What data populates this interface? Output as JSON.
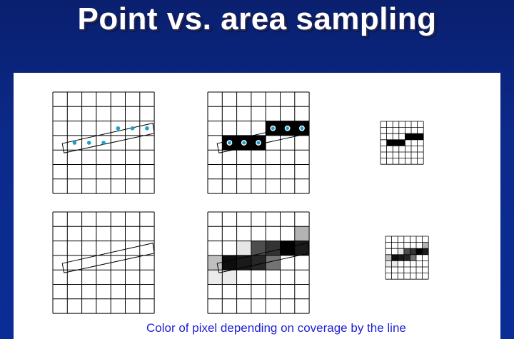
{
  "title": "Point vs. area sampling",
  "caption": "Color of pixel depending on coverage by the line",
  "colors": {
    "background": "#0b2a8a",
    "panel": "#ffffff",
    "title_text": "#ffffff",
    "caption_text": "#1f1fd6",
    "sample_dot": "#1a9fd0",
    "grid_line": "#000000"
  },
  "grids": {
    "point_sampling": {
      "rows": 7,
      "cols": 7,
      "filled_cells": [
        [
          3,
          1
        ],
        [
          3,
          2
        ],
        [
          3,
          3
        ],
        [
          2,
          4
        ],
        [
          2,
          5
        ],
        [
          2,
          6
        ]
      ],
      "sample_points": [
        [
          3,
          1
        ],
        [
          3,
          2
        ],
        [
          3,
          3
        ],
        [
          2,
          4
        ],
        [
          2,
          5
        ],
        [
          2,
          6
        ]
      ]
    },
    "point_sampling_small": {
      "rows": 7,
      "cols": 7,
      "filled_cells": [
        [
          3,
          1
        ],
        [
          3,
          2
        ],
        [
          3,
          3
        ],
        [
          2,
          4
        ],
        [
          2,
          5
        ],
        [
          2,
          6
        ]
      ]
    },
    "area_sampling": {
      "rows": 7,
      "cols": 7,
      "shaded_cells": [
        {
          "row": 1,
          "col": 6,
          "gray": 0.7
        },
        {
          "row": 2,
          "col": 2,
          "gray": 0.9
        },
        {
          "row": 2,
          "col": 3,
          "gray": 0.3
        },
        {
          "row": 2,
          "col": 4,
          "gray": 0.2
        },
        {
          "row": 2,
          "col": 5,
          "gray": 0.0
        },
        {
          "row": 2,
          "col": 6,
          "gray": 0.1
        },
        {
          "row": 3,
          "col": 0,
          "gray": 0.75
        },
        {
          "row": 3,
          "col": 1,
          "gray": 0.05
        },
        {
          "row": 3,
          "col": 2,
          "gray": 0.1
        },
        {
          "row": 3,
          "col": 3,
          "gray": 0.15
        },
        {
          "row": 3,
          "col": 4,
          "gray": 0.45
        },
        {
          "row": 4,
          "col": 0,
          "gray": 0.92
        },
        {
          "row": 4,
          "col": 1,
          "gray": 0.92
        }
      ]
    },
    "area_sampling_small": {
      "rows": 7,
      "cols": 7,
      "shaded_cells": [
        {
          "row": 1,
          "col": 6,
          "gray": 0.7
        },
        {
          "row": 2,
          "col": 2,
          "gray": 0.9
        },
        {
          "row": 2,
          "col": 3,
          "gray": 0.3
        },
        {
          "row": 2,
          "col": 4,
          "gray": 0.2
        },
        {
          "row": 2,
          "col": 5,
          "gray": 0.0
        },
        {
          "row": 2,
          "col": 6,
          "gray": 0.1
        },
        {
          "row": 3,
          "col": 0,
          "gray": 0.75
        },
        {
          "row": 3,
          "col": 1,
          "gray": 0.05
        },
        {
          "row": 3,
          "col": 2,
          "gray": 0.1
        },
        {
          "row": 3,
          "col": 3,
          "gray": 0.15
        },
        {
          "row": 3,
          "col": 4,
          "gray": 0.45
        },
        {
          "row": 4,
          "col": 0,
          "gray": 0.92
        },
        {
          "row": 4,
          "col": 1,
          "gray": 0.92
        }
      ]
    }
  }
}
